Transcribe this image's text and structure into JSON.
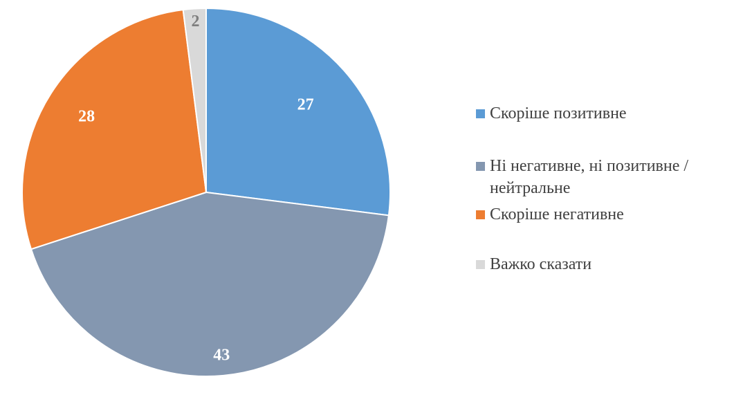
{
  "chart_data": {
    "type": "pie",
    "title": "",
    "start_angle_deg": 0,
    "direction": "clockwise",
    "legend_position": "right",
    "slices": [
      {
        "label": "Скоріше позитивне",
        "value": 27,
        "color": "#5B9BD5",
        "label_color": "#ffffff"
      },
      {
        "label": "Ні негативне, ні позитивне / нейтральне",
        "value": 43,
        "color": "#8497B0",
        "label_color": "#ffffff"
      },
      {
        "label": "Скоріше негативне",
        "value": 28,
        "color": "#ED7D31",
        "label_color": "#ffffff"
      },
      {
        "label": "Важко сказати",
        "value": 2,
        "color": "#D9D9D9",
        "label_color": "#7F7F7F"
      }
    ]
  }
}
